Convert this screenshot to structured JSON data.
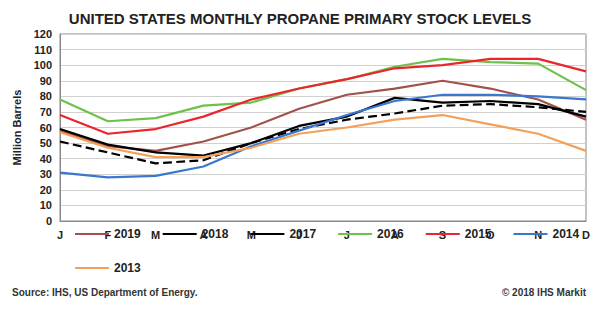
{
  "chart_data": {
    "type": "line",
    "title": "UNITED STATES MONTHLY PROPANE PRIMARY STOCK LEVELS",
    "y_label": "Million Barrels",
    "annotations": [
      "Source: IHS, US Department of Energy.",
      "© 2018 IHS Markit"
    ],
    "categories": [
      "J",
      "F",
      "M",
      "A",
      "M",
      "J",
      "J",
      "A",
      "S",
      "O",
      "N",
      "D"
    ],
    "series": [
      {
        "name": "2019",
        "color": "#a3514c",
        "line_style": "solid",
        "values": [
          58,
          48,
          45,
          51,
          60,
          72,
          81,
          85,
          90,
          85,
          78,
          65
        ]
      },
      {
        "name": "2018",
        "color": "#000000",
        "line_style": "dashed",
        "values": [
          51,
          44,
          37,
          39,
          50,
          59,
          65,
          69,
          74,
          75,
          73,
          70
        ]
      },
      {
        "name": "2017",
        "color": "#000000",
        "line_style": "solid",
        "values": [
          59,
          49,
          44,
          42,
          50,
          61,
          67,
          79,
          76,
          77,
          75,
          67
        ]
      },
      {
        "name": "2016",
        "color": "#6cc24a",
        "line_style": "solid",
        "values": [
          78,
          64,
          66,
          74,
          76,
          85,
          91,
          99,
          104,
          102,
          101,
          84
        ]
      },
      {
        "name": "2015",
        "color": "#e8262b",
        "line_style": "solid",
        "values": [
          68,
          56,
          59,
          67,
          78,
          85,
          91,
          98,
          100,
          104,
          104,
          96
        ]
      },
      {
        "name": "2014",
        "color": "#3a78cf",
        "line_style": "solid",
        "values": [
          31,
          28,
          29,
          35,
          48,
          58,
          68,
          77,
          81,
          81,
          80,
          78
        ]
      },
      {
        "name": "2013",
        "color": "#f4a05a",
        "line_style": "solid",
        "values": [
          57,
          47,
          41,
          41,
          47,
          56,
          60,
          65,
          68,
          62,
          56,
          45
        ]
      }
    ],
    "ylim": [
      0,
      120
    ],
    "yticks": [
      0,
      10,
      20,
      30,
      40,
      50,
      60,
      70,
      80,
      90,
      100,
      110,
      120
    ],
    "grid": true,
    "legend": "bottom"
  }
}
